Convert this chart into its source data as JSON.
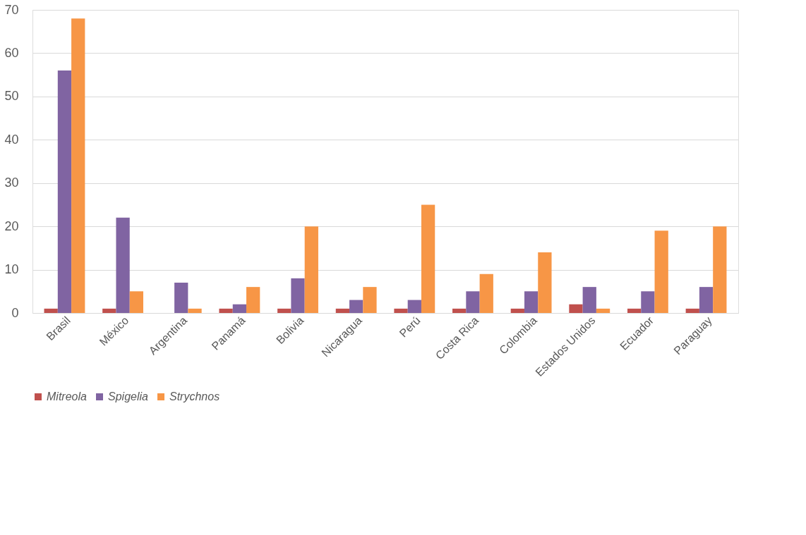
{
  "chart_data": {
    "type": "bar",
    "categories": [
      "Brasil",
      "México",
      "Argentina",
      "Panamá",
      "Bolivia",
      "Nicaragua",
      "Perú",
      "Costa Rica",
      "Colombia",
      "Estados Unidos",
      "Ecuador",
      "Paraguay"
    ],
    "series": [
      {
        "name": "Mitreola",
        "color": "#c0504d",
        "values": [
          1,
          1,
          0,
          1,
          1,
          1,
          1,
          1,
          1,
          2,
          1,
          1
        ]
      },
      {
        "name": "Spigelia",
        "color": "#8064a2",
        "values": [
          56,
          22,
          7,
          2,
          8,
          3,
          3,
          5,
          5,
          6,
          5,
          6
        ]
      },
      {
        "name": "Strychnos",
        "color": "#f79646",
        "values": [
          68,
          5,
          1,
          6,
          20,
          6,
          25,
          9,
          14,
          1,
          19,
          20
        ]
      }
    ],
    "ylim": [
      0,
      70
    ],
    "yticks": [
      0,
      10,
      20,
      30,
      40,
      50,
      60,
      70
    ],
    "grid": "y",
    "legend": "bottom"
  }
}
